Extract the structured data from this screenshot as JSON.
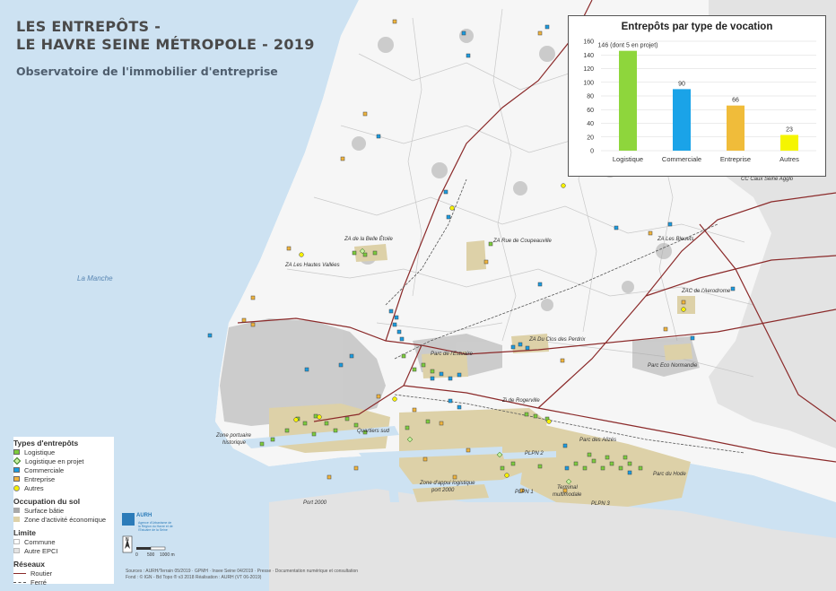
{
  "header": {
    "title_line1": "LES ENTREPÔTS -",
    "title_line2": "LE HAVRE SEINE MÉTROPOLE - 2019",
    "subtitle": "Observatoire de l'immobilier d'entreprise"
  },
  "chart_data": {
    "type": "bar",
    "title": "Entrepôts par type de vocation",
    "categories": [
      "Logistique",
      "Commerciale",
      "Entreprise",
      "Autres"
    ],
    "values": [
      146,
      90,
      66,
      23
    ],
    "data_labels": [
      "146 (dont 5 en projet)",
      "90",
      "66",
      "23"
    ],
    "colors": [
      "#8ed63c",
      "#1aa3e8",
      "#f0bc3a",
      "#f5f500"
    ],
    "ylim": [
      0,
      160
    ],
    "yticks": [
      0,
      20,
      40,
      60,
      80,
      100,
      120,
      140,
      160
    ],
    "grid": true
  },
  "legend": {
    "types_title": "Types d'entrepôts",
    "types": [
      {
        "label": "Logistique",
        "symbol": "square",
        "color": "#7ccc3c"
      },
      {
        "label": "Logistique en projet",
        "symbol": "diamond",
        "color": "#c8f0a0"
      },
      {
        "label": "Commerciale",
        "symbol": "square",
        "color": "#1a9be0"
      },
      {
        "label": "Entreprise",
        "symbol": "square",
        "color": "#f0b43c"
      },
      {
        "label": "Autres",
        "symbol": "circle",
        "color": "#f5f000"
      }
    ],
    "occupation_title": "Occupation du sol",
    "occupation": [
      {
        "label": "Surface bâtie",
        "color": "#a9a9a9"
      },
      {
        "label": "Zone d'activité économique",
        "color": "#ddd1a8"
      }
    ],
    "limite_title": "Limite",
    "limite": [
      {
        "label": "Commune",
        "color": "#ffffff"
      },
      {
        "label": "Autre EPCI",
        "color": "#e3e3e3"
      }
    ],
    "reseaux_title": "Réseaux",
    "reseaux": [
      {
        "label": "Routier",
        "color": "#8b2a2a",
        "style": "solid"
      },
      {
        "label": "Ferré",
        "color": "#555555",
        "style": "dashed"
      }
    ]
  },
  "sea": {
    "label": "La Manche",
    "color": "#cde2f2"
  },
  "places": [
    {
      "label": "ZA de la Belle Étoile"
    },
    {
      "label": "ZA Rue de Coupeauville"
    },
    {
      "label": "ZA Les Hautes Vallées"
    },
    {
      "label": "ZA Les Bleuets"
    },
    {
      "label": "ZAC de l'Aerodrome"
    },
    {
      "label": "ZA Du Clos des Perdrix"
    },
    {
      "label": "Parc de l'Estuaire"
    },
    {
      "label": "Parc Eco Normandie"
    },
    {
      "label": "CC Caux Seine Agglo"
    },
    {
      "label": "Zi de Rogerville"
    },
    {
      "label": "Zone portuaire"
    },
    {
      "label": "historique"
    },
    {
      "label": "Quartiers sud"
    },
    {
      "label": "Parc des Alizés"
    },
    {
      "label": "PLPN 2"
    },
    {
      "label": "Parc du Hode"
    },
    {
      "label": "Zone d'appui logistique"
    },
    {
      "label": "port 2000"
    },
    {
      "label": "PLPN 1"
    },
    {
      "label": "Terminal"
    },
    {
      "label": "multimodale"
    },
    {
      "label": "PLPN 3"
    },
    {
      "label": "Port 2000"
    }
  ],
  "brand": {
    "name": "AURH",
    "subtitle": "Agence d'Urbanisme de la Région du Havre et de l'Estuaire de la Seine"
  },
  "scale": {
    "labels": [
      "0",
      "500",
      "1000 m"
    ],
    "north": "N"
  },
  "sources": {
    "line1": "Sources : AURH/Terrain 05/2019 · GPMH · Insee Seine 04/2019 · Presse · Documentation numérique et consultation",
    "line2": "Fond : © IGN - Bd Topo ® v3 2018 Réalisation : AURH (VT 06-2019)"
  }
}
